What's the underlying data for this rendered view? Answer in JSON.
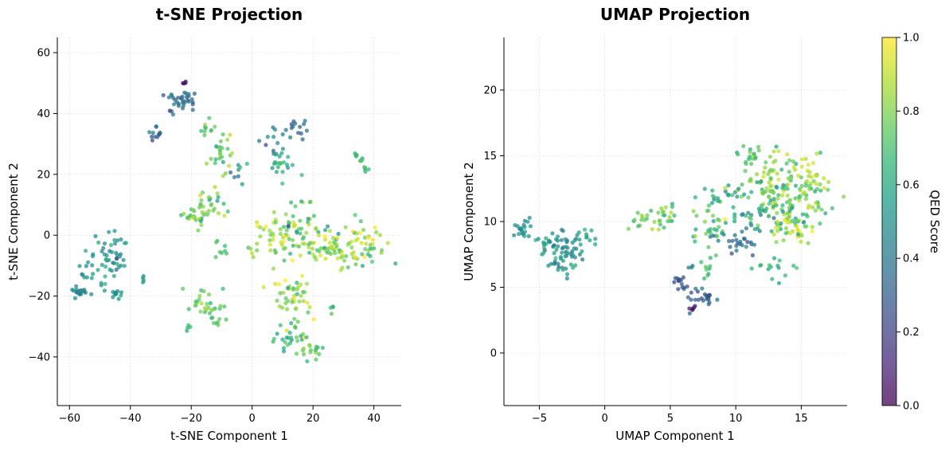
{
  "colors": {
    "viridis": [
      "#440154",
      "#482878",
      "#3e4989",
      "#31688e",
      "#26828e",
      "#1f9e89",
      "#35b779",
      "#6ece58",
      "#b5de2b",
      "#fde725"
    ],
    "grid": "#cccccc"
  },
  "chart_data": [
    {
      "type": "scatter",
      "id": "tsne",
      "title": "t-SNE Projection",
      "xlabel": "t-SNE Component 1",
      "ylabel": "t-SNE Component 2",
      "xlim": [
        -64,
        49
      ],
      "ylim": [
        -56,
        65
      ],
      "xticks": [
        -60,
        -40,
        -20,
        0,
        20,
        40
      ],
      "xtick_labels": [
        "−60",
        "−40",
        "−20",
        "0",
        "20",
        "40"
      ],
      "yticks": [
        -40,
        -20,
        0,
        20,
        40,
        60
      ],
      "ytick_labels": [
        "−40",
        "−20",
        "0",
        "20",
        "40",
        "60"
      ],
      "grid": true,
      "color_by": "QED Score",
      "clusters": [
        {
          "cx": -57,
          "cy": -18.5,
          "sx": 1.5,
          "sy": 1.2,
          "n": 20,
          "q": 0.45,
          "qs": 0.04
        },
        {
          "cx": -50,
          "cy": -10,
          "sx": 3.5,
          "sy": 4.5,
          "n": 30,
          "q": 0.55,
          "qs": 0.07
        },
        {
          "cx": -45,
          "cy": -6,
          "sx": 2.5,
          "sy": 5,
          "n": 30,
          "q": 0.5,
          "qs": 0.07
        },
        {
          "cx": -45,
          "cy": -19.5,
          "sx": 1.5,
          "sy": 1,
          "n": 10,
          "q": 0.52,
          "qs": 0.05
        },
        {
          "cx": -36,
          "cy": -14.5,
          "sx": 1,
          "sy": 1,
          "n": 4,
          "q": 0.55,
          "qs": 0.03
        },
        {
          "cx": -23,
          "cy": 44,
          "sx": 2.5,
          "sy": 2,
          "n": 35,
          "q": 0.38,
          "qs": 0.06
        },
        {
          "cx": -22,
          "cy": 50,
          "sx": 0.6,
          "sy": 0.3,
          "n": 4,
          "q": 0.05,
          "qs": 0.03
        },
        {
          "cx": -32,
          "cy": 33.5,
          "sx": 1.2,
          "sy": 1.5,
          "n": 12,
          "q": 0.35,
          "qs": 0.05
        },
        {
          "cx": -15,
          "cy": 35,
          "sx": 1.5,
          "sy": 1.5,
          "n": 10,
          "q": 0.72,
          "qs": 0.05
        },
        {
          "cx": -10,
          "cy": 26,
          "sx": 2,
          "sy": 3,
          "n": 25,
          "q": 0.75,
          "qs": 0.08
        },
        {
          "cx": -4,
          "cy": 21,
          "sx": 1.5,
          "sy": 2.5,
          "n": 8,
          "q": 0.55,
          "qs": 0.12
        },
        {
          "cx": -17,
          "cy": 8,
          "sx": 3,
          "sy": 3,
          "n": 35,
          "q": 0.75,
          "qs": 0.08
        },
        {
          "cx": -11,
          "cy": 11,
          "sx": 2,
          "sy": 2.5,
          "n": 12,
          "q": 0.72,
          "qs": 0.08
        },
        {
          "cx": -10,
          "cy": -4.5,
          "sx": 1.2,
          "sy": 1.5,
          "n": 8,
          "q": 0.7,
          "qs": 0.05
        },
        {
          "cx": -17,
          "cy": -22,
          "sx": 2,
          "sy": 3,
          "n": 15,
          "q": 0.72,
          "qs": 0.06
        },
        {
          "cx": -13,
          "cy": -26,
          "sx": 2.5,
          "sy": 3,
          "n": 20,
          "q": 0.75,
          "qs": 0.07
        },
        {
          "cx": -21,
          "cy": -30,
          "sx": 0.5,
          "sy": 0.6,
          "n": 4,
          "q": 0.7,
          "qs": 0.04
        },
        {
          "cx": 8,
          "cy": 32,
          "sx": 2.5,
          "sy": 2.5,
          "n": 15,
          "q": 0.4,
          "qs": 0.06
        },
        {
          "cx": 15,
          "cy": 35,
          "sx": 2,
          "sy": 1.5,
          "n": 10,
          "q": 0.38,
          "qs": 0.05
        },
        {
          "cx": 10,
          "cy": 23,
          "sx": 3,
          "sy": 2,
          "n": 20,
          "q": 0.62,
          "qs": 0.07
        },
        {
          "cx": 35,
          "cy": 25.5,
          "sx": 1.2,
          "sy": 1,
          "n": 8,
          "q": 0.68,
          "qs": 0.05
        },
        {
          "cx": 37,
          "cy": 22,
          "sx": 1,
          "sy": 0.8,
          "n": 5,
          "q": 0.65,
          "qs": 0.05
        },
        {
          "cx": 7,
          "cy": 0,
          "sx": 4,
          "sy": 4,
          "n": 45,
          "q": 0.85,
          "qs": 0.08
        },
        {
          "cx": 16,
          "cy": 5,
          "sx": 4,
          "sy": 4,
          "n": 35,
          "q": 0.7,
          "qs": 0.12
        },
        {
          "cx": 25,
          "cy": -5,
          "sx": 6,
          "sy": 4,
          "n": 75,
          "q": 0.82,
          "qs": 0.1
        },
        {
          "cx": 38,
          "cy": -3,
          "sx": 4,
          "sy": 4,
          "n": 35,
          "q": 0.8,
          "qs": 0.1
        },
        {
          "cx": 14,
          "cy": -22,
          "sx": 4,
          "sy": 5,
          "n": 45,
          "q": 0.82,
          "qs": 0.1
        },
        {
          "cx": 12,
          "cy": -34,
          "sx": 2.5,
          "sy": 2,
          "n": 20,
          "q": 0.65,
          "qs": 0.08
        },
        {
          "cx": 19.5,
          "cy": -37,
          "sx": 2,
          "sy": 2,
          "n": 20,
          "q": 0.75,
          "qs": 0.07
        },
        {
          "cx": 26,
          "cy": -24,
          "sx": 1,
          "sy": 0.8,
          "n": 4,
          "q": 0.68,
          "qs": 0.04
        }
      ]
    },
    {
      "type": "scatter",
      "id": "umap",
      "title": "UMAP Projection",
      "xlabel": "UMAP Component 1",
      "ylabel": "UMAP Component 2",
      "xlim": [
        -7.7,
        18.5
      ],
      "ylim": [
        -4,
        24
      ],
      "xticks": [
        -5,
        0,
        5,
        10,
        15
      ],
      "xtick_labels": [
        "−5",
        "0",
        "5",
        "10",
        "15"
      ],
      "yticks": [
        0,
        5,
        10,
        15,
        20
      ],
      "ytick_labels": [
        "0",
        "5",
        "10",
        "15",
        "20"
      ],
      "grid": true,
      "color_by": "QED Score",
      "clusters": [
        {
          "cx": -6.2,
          "cy": 9.5,
          "sx": 0.4,
          "sy": 0.35,
          "n": 20,
          "q": 0.5,
          "qs": 0.04
        },
        {
          "cx": -4.5,
          "cy": 8.3,
          "sx": 0.8,
          "sy": 0.6,
          "n": 25,
          "q": 0.55,
          "qs": 0.06
        },
        {
          "cx": -2.8,
          "cy": 7.3,
          "sx": 0.8,
          "sy": 1,
          "n": 50,
          "q": 0.5,
          "qs": 0.08
        },
        {
          "cx": -1.5,
          "cy": 9,
          "sx": 0.7,
          "sy": 0.3,
          "n": 10,
          "q": 0.6,
          "qs": 0.05
        },
        {
          "cx": 3.3,
          "cy": 10,
          "sx": 0.7,
          "sy": 0.5,
          "n": 20,
          "q": 0.78,
          "qs": 0.07
        },
        {
          "cx": 4.8,
          "cy": 10.5,
          "sx": 0.5,
          "sy": 0.5,
          "n": 15,
          "q": 0.75,
          "qs": 0.07
        },
        {
          "cx": 5.8,
          "cy": 5.5,
          "sx": 0.3,
          "sy": 0.4,
          "n": 15,
          "q": 0.3,
          "qs": 0.05
        },
        {
          "cx": 6.6,
          "cy": 6.6,
          "sx": 0.1,
          "sy": 0.2,
          "n": 3,
          "q": 0.4,
          "qs": 0.03
        },
        {
          "cx": 7.5,
          "cy": 4.2,
          "sx": 0.5,
          "sy": 0.5,
          "n": 25,
          "q": 0.3,
          "qs": 0.05
        },
        {
          "cx": 6.8,
          "cy": 3.4,
          "sx": 0.2,
          "sy": 0.15,
          "n": 5,
          "q": 0.1,
          "qs": 0.05
        },
        {
          "cx": 7.7,
          "cy": 6.5,
          "sx": 0.4,
          "sy": 0.6,
          "n": 10,
          "q": 0.72,
          "qs": 0.05
        },
        {
          "cx": 8,
          "cy": 9.5,
          "sx": 0.6,
          "sy": 0.8,
          "n": 25,
          "q": 0.75,
          "qs": 0.08
        },
        {
          "cx": 8.6,
          "cy": 12,
          "sx": 0.8,
          "sy": 0.5,
          "n": 20,
          "q": 0.68,
          "qs": 0.08
        },
        {
          "cx": 10.5,
          "cy": 8.5,
          "sx": 1,
          "sy": 0.4,
          "n": 25,
          "q": 0.35,
          "qs": 0.06
        },
        {
          "cx": 10.5,
          "cy": 10.5,
          "sx": 1,
          "sy": 1,
          "n": 25,
          "q": 0.55,
          "qs": 0.12
        },
        {
          "cx": 11.2,
          "cy": 15,
          "sx": 0.5,
          "sy": 0.4,
          "n": 18,
          "q": 0.7,
          "qs": 0.06
        },
        {
          "cx": 12.5,
          "cy": 13,
          "sx": 1,
          "sy": 1.3,
          "n": 60,
          "q": 0.82,
          "qs": 0.08
        },
        {
          "cx": 12.8,
          "cy": 6.5,
          "sx": 0.7,
          "sy": 0.4,
          "n": 15,
          "q": 0.65,
          "qs": 0.05
        },
        {
          "cx": 14.5,
          "cy": 12,
          "sx": 1.3,
          "sy": 1.3,
          "n": 90,
          "q": 0.75,
          "qs": 0.1
        },
        {
          "cx": 14.5,
          "cy": 9.3,
          "sx": 0.8,
          "sy": 0.5,
          "n": 30,
          "q": 0.88,
          "qs": 0.06
        },
        {
          "cx": 15.8,
          "cy": 13.5,
          "sx": 0.6,
          "sy": 0.7,
          "n": 20,
          "q": 0.9,
          "qs": 0.05
        },
        {
          "cx": 13,
          "cy": 11,
          "sx": 1.2,
          "sy": 0.8,
          "n": 25,
          "q": 0.6,
          "qs": 0.1
        }
      ]
    },
    {
      "type": "colorbar",
      "id": "colorbar",
      "label": "QED Score",
      "range": [
        0,
        1
      ],
      "ticks": [
        0,
        0.2,
        0.4,
        0.6,
        0.8,
        1
      ],
      "tick_labels": [
        "0.0",
        "0.2",
        "0.4",
        "0.6",
        "0.8",
        "1.0"
      ]
    }
  ]
}
